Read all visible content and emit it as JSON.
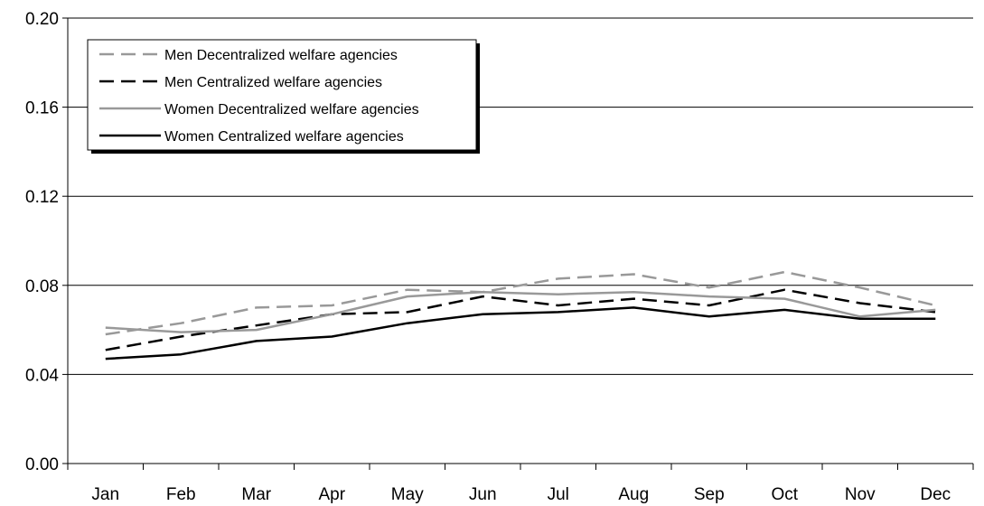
{
  "chart_data": {
    "type": "line",
    "title": "",
    "xlabel": "",
    "ylabel": "",
    "categories": [
      "Jan",
      "Feb",
      "Mar",
      "Apr",
      "May",
      "Jun",
      "Jul",
      "Aug",
      "Sep",
      "Oct",
      "Nov",
      "Dec"
    ],
    "ylim": [
      0,
      0.2
    ],
    "yticks": [
      "0.00",
      "0.04",
      "0.08",
      "0.12",
      "0.16",
      "0.20"
    ],
    "grid": "horizontal",
    "legend_position": "top-left",
    "series": [
      {
        "name": "Men Decentralized welfare agencies",
        "color": "#999999",
        "dash": "dashed",
        "values": [
          0.058,
          0.063,
          0.07,
          0.071,
          0.078,
          0.077,
          0.083,
          0.085,
          0.079,
          0.086,
          0.079,
          0.071
        ]
      },
      {
        "name": "Men Centralized welfare agencies",
        "color": "#000000",
        "dash": "dashed",
        "values": [
          0.051,
          0.057,
          0.062,
          0.067,
          0.068,
          0.075,
          0.071,
          0.074,
          0.071,
          0.078,
          0.072,
          0.068
        ]
      },
      {
        "name": "Women Decentralized welfare agencies",
        "color": "#999999",
        "dash": "solid",
        "values": [
          0.061,
          0.059,
          0.06,
          0.067,
          0.075,
          0.077,
          0.076,
          0.077,
          0.075,
          0.074,
          0.066,
          0.069
        ]
      },
      {
        "name": "Women Centralized welfare agencies",
        "color": "#000000",
        "dash": "solid",
        "values": [
          0.047,
          0.049,
          0.055,
          0.057,
          0.063,
          0.067,
          0.068,
          0.07,
          0.066,
          0.069,
          0.065,
          0.065
        ]
      }
    ]
  }
}
